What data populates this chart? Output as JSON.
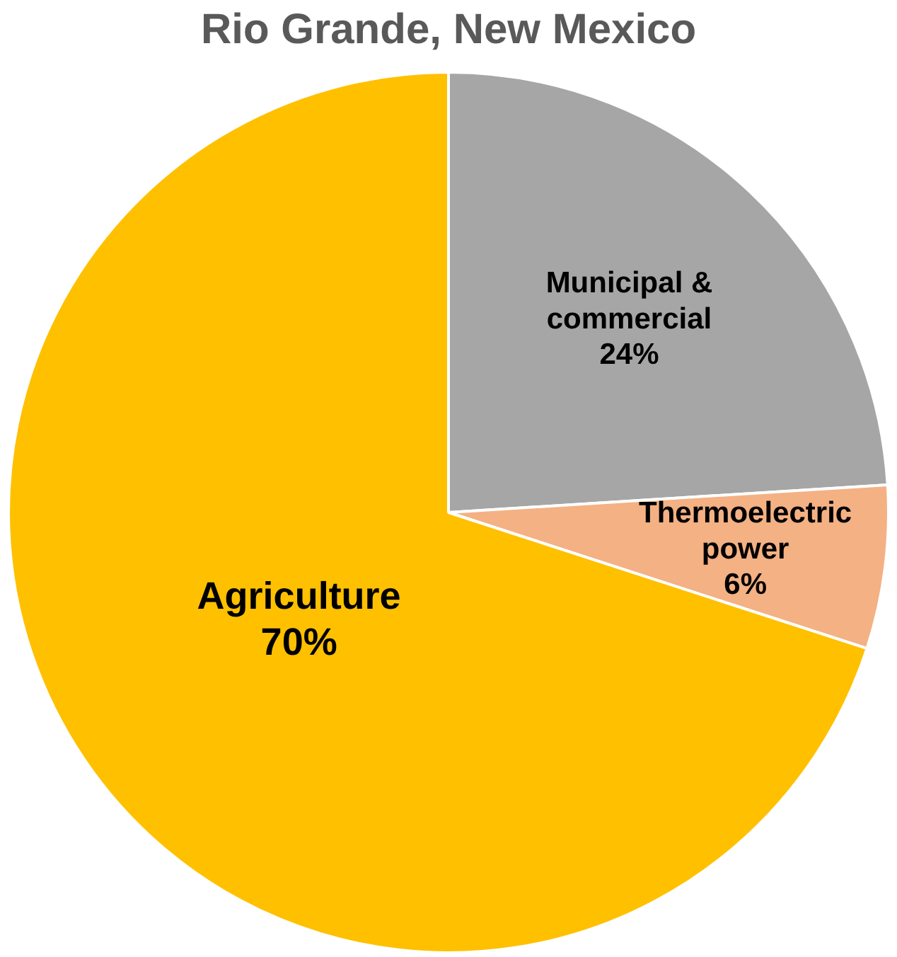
{
  "chart_data": {
    "type": "pie",
    "title": "Rio Grande, New Mexico",
    "categories": [
      "Municipal & commercial",
      "Thermoelectric power",
      "Agriculture"
    ],
    "values": [
      24,
      6,
      70
    ],
    "value_labels": [
      "24%",
      "6%",
      "70%"
    ],
    "colors": [
      "#a6a6a6",
      "#f4b183",
      "#ffc000"
    ],
    "legend": false
  }
}
